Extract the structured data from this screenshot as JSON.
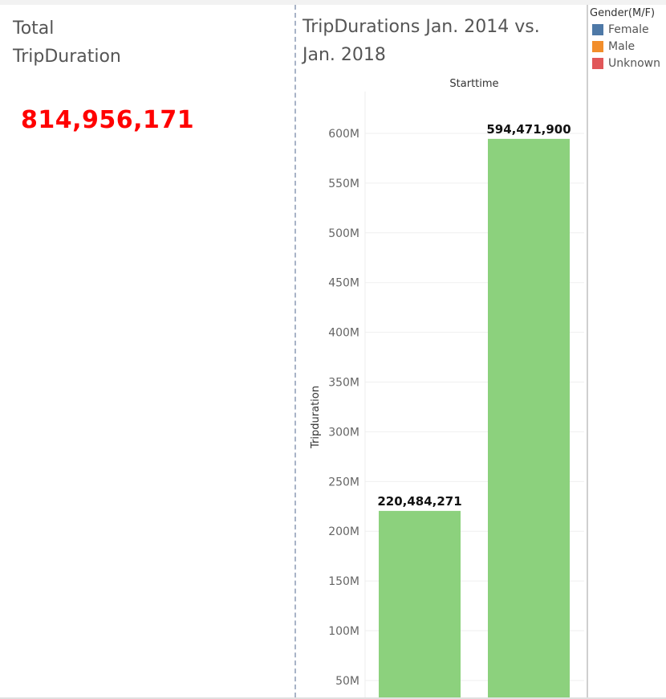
{
  "kpi": {
    "title_line1": "Total",
    "title_line2": "TripDuration",
    "value": "814,956,171",
    "value_color": "#ff0000"
  },
  "chart": {
    "title_line1": "TripDurations Jan. 2014 vs.",
    "title_line2": "Jan. 2018"
  },
  "legend": {
    "title": "Gender(M/F)",
    "items": [
      {
        "label": "Female",
        "color": "#4e79a7"
      },
      {
        "label": "Male",
        "color": "#f28e2b"
      },
      {
        "label": "Unknown",
        "color": "#e15759"
      }
    ]
  },
  "chart_data": {
    "type": "bar",
    "title": "TripDurations Jan. 2014 vs. Jan. 2018",
    "column_header": "Starttime",
    "ylabel": "Tripduration",
    "xlabel": "",
    "values": [
      220484271,
      594471900
    ],
    "value_labels": [
      "220,484,271",
      "594,471,900"
    ],
    "bar_color": "#8cd17d",
    "yticks": [
      50000000,
      100000000,
      150000000,
      200000000,
      250000000,
      300000000,
      350000000,
      400000000,
      450000000,
      500000000,
      550000000,
      600000000
    ],
    "ytick_labels": [
      "50M",
      "100M",
      "150M",
      "200M",
      "250M",
      "300M",
      "350M",
      "400M",
      "450M",
      "500M",
      "550M",
      "600M"
    ],
    "ylim": [
      33000000,
      642000000
    ],
    "grid": true
  }
}
